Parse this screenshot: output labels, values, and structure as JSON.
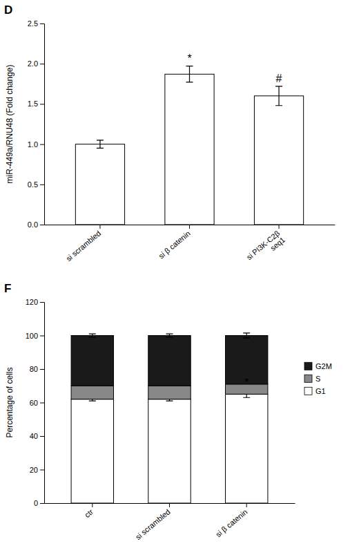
{
  "chart_data": [
    {
      "type": "bar",
      "title": "D",
      "categories": [
        "si scrambled",
        "si β catenin",
        "si PI3K-C2β\nseq1"
      ],
      "values": [
        1.0,
        1.87,
        1.6
      ],
      "errors": [
        0.05,
        0.1,
        0.12
      ],
      "color": "white",
      "ylabel": "miR-449a/RNU48 (Fold change)",
      "ylim": [
        0,
        2.5
      ],
      "yticks": [
        {
          "value": 0,
          "label": "0.0"
        },
        0.5,
        {
          "value": 1,
          "label": "1.0"
        },
        1.5,
        {
          "value": 2,
          "label": "2.0"
        },
        2.5
      ],
      "grid": false,
      "annotations": [
        {
          "x": "si β catenin",
          "y": 2.0,
          "text": "*"
        },
        {
          "x": "si PI3K-C2β\nseq1",
          "y": 1.75,
          "text": "#"
        }
      ]
    },
    {
      "type": "bar",
      "title": "F",
      "stacked": true,
      "categories": [
        "ctr",
        "si scrambled",
        "si β catenin"
      ],
      "series": [
        {
          "name": "G1",
          "color": "white",
          "values": [
            62,
            62,
            65
          ],
          "errors": [
            1.0,
            1.0,
            2.0
          ]
        },
        {
          "name": "S",
          "color": "#888888",
          "values": [
            8,
            8,
            6
          ]
        },
        {
          "name": "G2M",
          "color": "#1a1a1a",
          "values": [
            30,
            30,
            29
          ],
          "errors": [
            1.0,
            1.0,
            1.5
          ]
        }
      ],
      "ylabel": "Percentage of cells",
      "ylim": [
        0,
        120
      ],
      "yticks": [
        0,
        20,
        40,
        60,
        80,
        100,
        120
      ],
      "grid": false,
      "legend": "right",
      "annotations": [
        {
          "x": "si β catenin",
          "y": 69,
          "text": "*"
        }
      ]
    }
  ]
}
